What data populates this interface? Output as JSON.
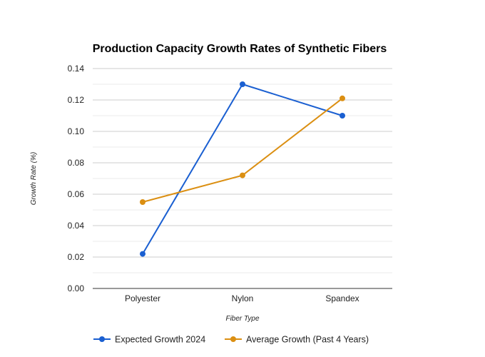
{
  "chart_data": {
    "type": "line",
    "title": "Production Capacity Growth Rates of Synthetic Fibers",
    "xlabel": "Fiber Type",
    "ylabel": "Growth Rate (%)",
    "categories": [
      "Polyester",
      "Nylon",
      "Spandex"
    ],
    "ylim": [
      0,
      0.14
    ],
    "yticks": [
      "0.00",
      "0.02",
      "0.04",
      "0.06",
      "0.08",
      "0.10",
      "0.12",
      "0.14"
    ],
    "ytick_values": [
      0,
      0.02,
      0.04,
      0.06,
      0.08,
      0.1,
      0.12,
      0.14
    ],
    "minor_grid_values": [
      0.01,
      0.03,
      0.05,
      0.07,
      0.09,
      0.11,
      0.13
    ],
    "grid": true,
    "legend_position": "bottom",
    "series": [
      {
        "name": "Expected Growth 2024",
        "color": "#1a5fd1",
        "values": [
          0.022,
          0.13,
          0.11
        ]
      },
      {
        "name": "Average Growth (Past 4 Years)",
        "color": "#db8f12",
        "values": [
          0.055,
          0.072,
          0.121
        ]
      }
    ]
  }
}
